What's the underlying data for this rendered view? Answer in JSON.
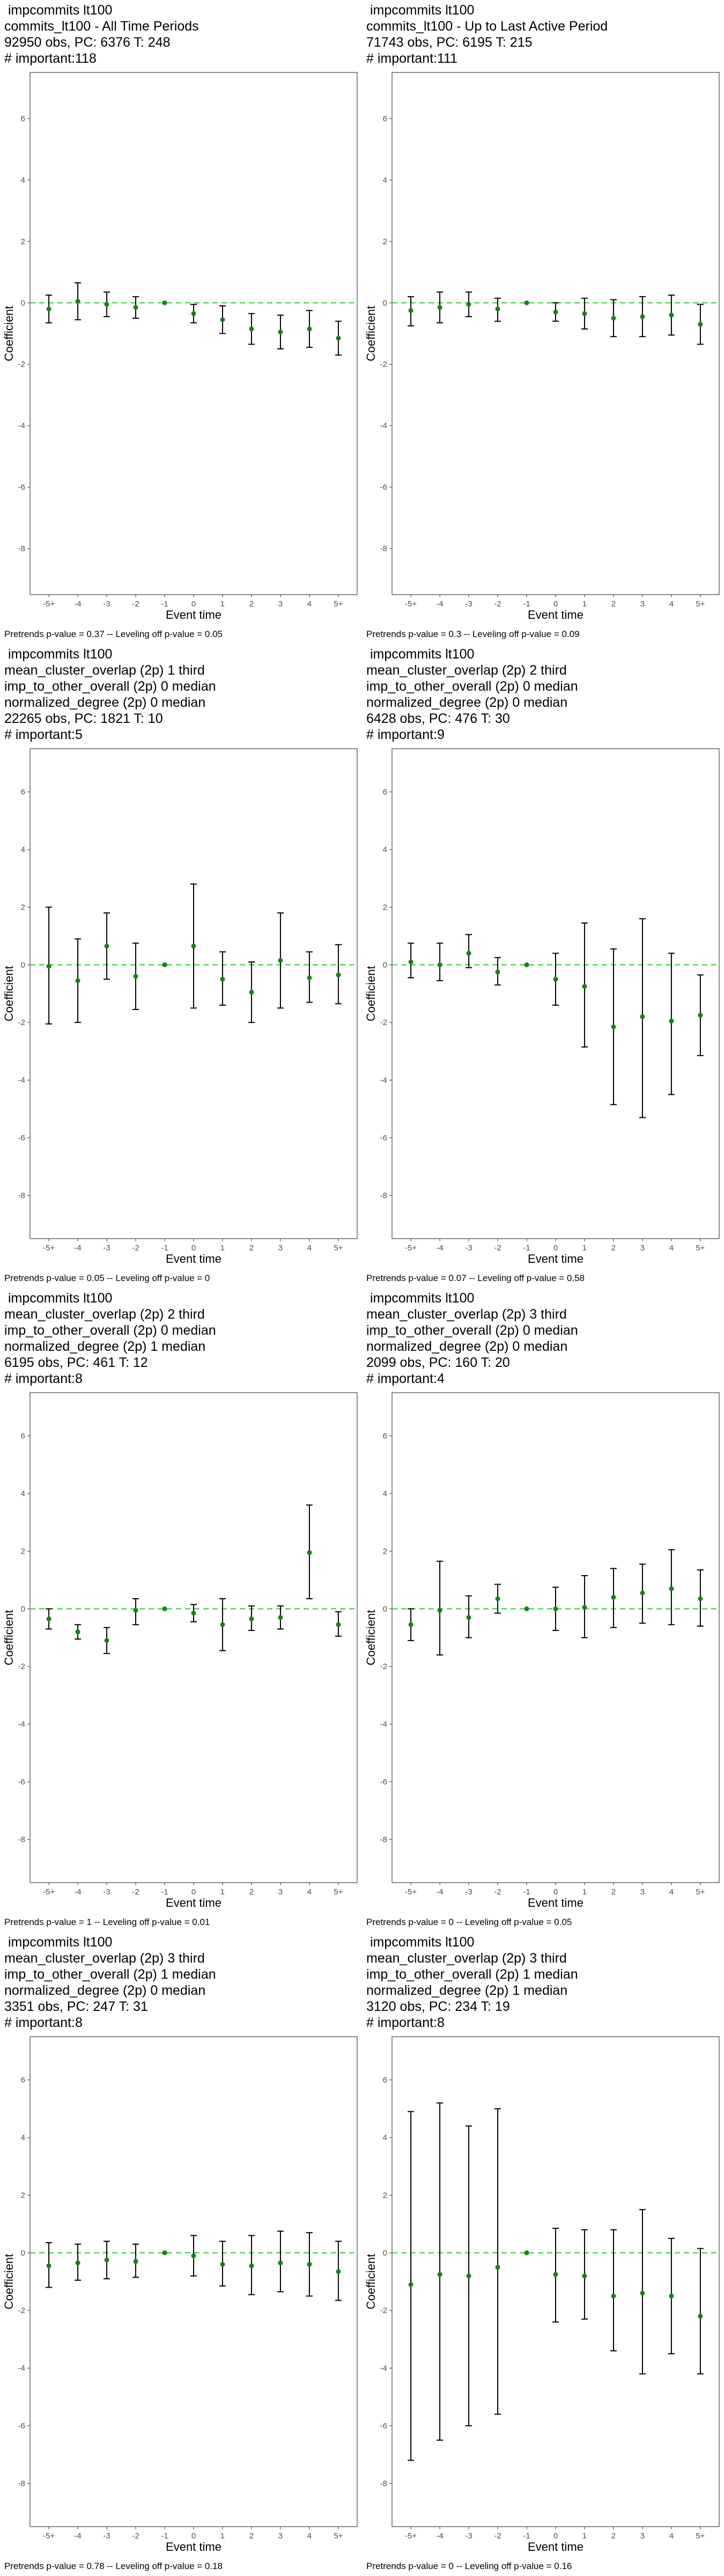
{
  "chart_data": [
    {
      "type": "scatter",
      "title_lines": [
        " impcommits lt100",
        "commits_lt100 - All Time Periods",
        "92950 obs, PC: 6376 T: 248",
        "# important:118"
      ],
      "caption": "Pretrends p-value = 0.37 -- Leveling off p-value = 0.05",
      "xlabel": "Event time",
      "ylabel": "Coefficient",
      "categories": [
        "-5+",
        "-4",
        "-3",
        "-2",
        "-1",
        "0",
        "1",
        "2",
        "3",
        "4",
        "5+"
      ],
      "ylim": [
        -9.5,
        7.5
      ],
      "yticks": [
        -8,
        -6,
        -4,
        -2,
        0,
        2,
        4,
        6
      ],
      "reference_line": 0,
      "estimate": [
        -0.2,
        0.05,
        -0.05,
        -0.15,
        0,
        -0.35,
        -0.55,
        -0.85,
        -0.95,
        -0.85,
        -1.15
      ],
      "ci_lower": [
        -0.65,
        -0.55,
        -0.45,
        -0.5,
        0,
        -0.65,
        -1.0,
        -1.35,
        -1.5,
        -1.45,
        -1.7
      ],
      "ci_upper": [
        0.25,
        0.65,
        0.35,
        0.2,
        0,
        -0.05,
        -0.1,
        -0.35,
        -0.4,
        -0.25,
        -0.6
      ]
    },
    {
      "type": "scatter",
      "title_lines": [
        " impcommits lt100",
        "commits_lt100 - Up to Last Active Period",
        "71743 obs, PC: 6195 T: 215",
        "# important:111"
      ],
      "caption": "Pretrends p-value = 0.3 -- Leveling off p-value = 0.09",
      "xlabel": "Event time",
      "ylabel": "Coefficient",
      "categories": [
        "-5+",
        "-4",
        "-3",
        "-2",
        "-1",
        "0",
        "1",
        "2",
        "3",
        "4",
        "5+"
      ],
      "ylim": [
        -9.5,
        7.5
      ],
      "yticks": [
        -8,
        -6,
        -4,
        -2,
        0,
        2,
        4,
        6
      ],
      "reference_line": 0,
      "estimate": [
        -0.25,
        -0.15,
        -0.05,
        -0.2,
        0,
        -0.3,
        -0.35,
        -0.5,
        -0.45,
        -0.4,
        -0.7
      ],
      "ci_lower": [
        -0.75,
        -0.65,
        -0.45,
        -0.6,
        0,
        -0.6,
        -0.85,
        -1.1,
        -1.1,
        -1.05,
        -1.35
      ],
      "ci_upper": [
        0.2,
        0.35,
        0.35,
        0.15,
        0,
        0.0,
        0.15,
        0.1,
        0.2,
        0.25,
        -0.05
      ]
    },
    {
      "type": "scatter",
      "title_lines": [
        " impcommits lt100",
        "mean_cluster_overlap (2p) 1 third",
        "imp_to_other_overall (2p) 0 median",
        "normalized_degree (2p) 0 median",
        "22265 obs, PC: 1821 T: 10",
        "# important:5"
      ],
      "caption": "Pretrends p-value = 0.05 -- Leveling off p-value = 0",
      "xlabel": "Event time",
      "ylabel": "Coefficient",
      "categories": [
        "-5+",
        "-4",
        "-3",
        "-2",
        "-1",
        "0",
        "1",
        "2",
        "3",
        "4",
        "5+"
      ],
      "ylim": [
        -9.5,
        7.5
      ],
      "yticks": [
        -8,
        -6,
        -4,
        -2,
        0,
        2,
        4,
        6
      ],
      "reference_line": 0,
      "estimate": [
        -0.05,
        -0.55,
        0.65,
        -0.4,
        0,
        0.65,
        -0.5,
        -0.95,
        0.15,
        -0.45,
        -0.35
      ],
      "ci_lower": [
        -2.05,
        -2.0,
        -0.5,
        -1.55,
        0,
        -1.5,
        -1.4,
        -2.0,
        -1.5,
        -1.3,
        -1.35
      ],
      "ci_upper": [
        2.0,
        0.9,
        1.8,
        0.75,
        0,
        2.8,
        0.45,
        0.1,
        1.8,
        0.45,
        0.7
      ]
    },
    {
      "type": "scatter",
      "title_lines": [
        " impcommits lt100",
        "mean_cluster_overlap (2p) 2 third",
        "imp_to_other_overall (2p) 0 median",
        "normalized_degree (2p) 0 median",
        "6428 obs, PC: 476 T: 30",
        "# important:9"
      ],
      "caption": "Pretrends p-value = 0.07 -- Leveling off p-value = 0.58",
      "xlabel": "Event time",
      "ylabel": "Coefficient",
      "categories": [
        "-5+",
        "-4",
        "-3",
        "-2",
        "-1",
        "0",
        "1",
        "2",
        "3",
        "4",
        "5+"
      ],
      "ylim": [
        -9.5,
        7.5
      ],
      "yticks": [
        -8,
        -6,
        -4,
        -2,
        0,
        2,
        4,
        6
      ],
      "reference_line": 0,
      "estimate": [
        0.1,
        0.0,
        0.4,
        -0.25,
        0,
        -0.5,
        -0.75,
        -2.15,
        -1.8,
        -1.95,
        -1.75
      ],
      "ci_lower": [
        -0.45,
        -0.55,
        -0.1,
        -0.7,
        0,
        -1.4,
        -2.85,
        -4.85,
        -5.3,
        -4.5,
        -3.15
      ],
      "ci_upper": [
        0.75,
        0.75,
        1.05,
        0.25,
        0,
        0.4,
        1.45,
        0.55,
        1.6,
        0.4,
        -0.35
      ]
    },
    {
      "type": "scatter",
      "title_lines": [
        " impcommits lt100",
        "mean_cluster_overlap (2p) 2 third",
        "imp_to_other_overall (2p) 0 median",
        "normalized_degree (2p) 1 median",
        "6195 obs, PC: 461 T: 12",
        "# important:8"
      ],
      "caption": "Pretrends p-value = 1 -- Leveling off p-value = 0.01",
      "xlabel": "Event time",
      "ylabel": "Coefficient",
      "categories": [
        "-5+",
        "-4",
        "-3",
        "-2",
        "-1",
        "0",
        "1",
        "2",
        "3",
        "4",
        "5+"
      ],
      "ylim": [
        -9.5,
        7.5
      ],
      "yticks": [
        -8,
        -6,
        -4,
        -2,
        0,
        2,
        4,
        6
      ],
      "reference_line": 0,
      "estimate": [
        -0.35,
        -0.8,
        -1.1,
        -0.05,
        0,
        -0.15,
        -0.55,
        -0.35,
        -0.3,
        1.95,
        -0.55
      ],
      "ci_lower": [
        -0.7,
        -1.05,
        -1.55,
        -0.55,
        0,
        -0.45,
        -1.45,
        -0.75,
        -0.7,
        0.35,
        -0.95
      ],
      "ci_upper": [
        0.0,
        -0.55,
        -0.65,
        0.35,
        0,
        0.15,
        0.35,
        0.1,
        0.1,
        3.6,
        -0.1
      ]
    },
    {
      "type": "scatter",
      "title_lines": [
        " impcommits lt100",
        "mean_cluster_overlap (2p) 3 third",
        "imp_to_other_overall (2p) 0 median",
        "normalized_degree (2p) 0 median",
        "2099 obs, PC: 160 T: 20",
        "# important:4"
      ],
      "caption": "Pretrends p-value = 0 -- Leveling off p-value = 0.05",
      "xlabel": "Event time",
      "ylabel": "Coefficient",
      "categories": [
        "-5+",
        "-4",
        "-3",
        "-2",
        "-1",
        "0",
        "1",
        "2",
        "3",
        "4",
        "5+"
      ],
      "ylim": [
        -9.5,
        7.5
      ],
      "yticks": [
        -8,
        -6,
        -4,
        -2,
        0,
        2,
        4,
        6
      ],
      "reference_line": 0,
      "estimate": [
        -0.55,
        -0.05,
        -0.3,
        0.35,
        0,
        0.0,
        0.05,
        0.4,
        0.55,
        0.7,
        0.35
      ],
      "ci_lower": [
        -1.1,
        -1.6,
        -1.0,
        -0.15,
        0,
        -0.75,
        -1.0,
        -0.65,
        -0.5,
        -0.55,
        -0.6
      ],
      "ci_upper": [
        0.0,
        1.65,
        0.45,
        0.85,
        0,
        0.75,
        1.15,
        1.4,
        1.55,
        2.05,
        1.35
      ]
    },
    {
      "type": "scatter",
      "title_lines": [
        " impcommits lt100",
        "mean_cluster_overlap (2p) 3 third",
        "imp_to_other_overall (2p) 1 median",
        "normalized_degree (2p) 0 median",
        "3351 obs, PC: 247 T: 31",
        "# important:8"
      ],
      "caption": "Pretrends p-value = 0.78 -- Leveling off p-value = 0.18",
      "xlabel": "Event time",
      "ylabel": "Coefficient",
      "categories": [
        "-5+",
        "-4",
        "-3",
        "-2",
        "-1",
        "0",
        "1",
        "2",
        "3",
        "4",
        "5+"
      ],
      "ylim": [
        -9.5,
        7.5
      ],
      "yticks": [
        -8,
        -6,
        -4,
        -2,
        0,
        2,
        4,
        6
      ],
      "reference_line": 0,
      "estimate": [
        -0.45,
        -0.35,
        -0.25,
        -0.3,
        0,
        -0.1,
        -0.4,
        -0.45,
        -0.35,
        -0.4,
        -0.65
      ],
      "ci_lower": [
        -1.2,
        -0.95,
        -0.9,
        -0.85,
        0,
        -0.8,
        -1.15,
        -1.45,
        -1.35,
        -1.5,
        -1.65
      ],
      "ci_upper": [
        0.35,
        0.3,
        0.4,
        0.3,
        0,
        0.6,
        0.4,
        0.6,
        0.75,
        0.7,
        0.4
      ]
    },
    {
      "type": "scatter",
      "title_lines": [
        " impcommits lt100",
        "mean_cluster_overlap (2p) 3 third",
        "imp_to_other_overall (2p) 1 median",
        "normalized_degree (2p) 1 median",
        "3120 obs, PC: 234 T: 19",
        "# important:8"
      ],
      "caption": "Pretrends p-value = 0 -- Leveling off p-value = 0.16",
      "xlabel": "Event time",
      "ylabel": "Coefficient",
      "categories": [
        "-5+",
        "-4",
        "-3",
        "-2",
        "-1",
        "0",
        "1",
        "2",
        "3",
        "4",
        "5+"
      ],
      "ylim": [
        -9.5,
        7.5
      ],
      "yticks": [
        -8,
        -6,
        -4,
        -2,
        0,
        2,
        4,
        6
      ],
      "reference_line": 0,
      "estimate": [
        -1.1,
        -0.75,
        -0.8,
        -0.5,
        0,
        -0.75,
        -0.8,
        -1.5,
        -1.4,
        -1.5,
        -2.2
      ],
      "ci_lower": [
        -7.2,
        -6.5,
        -6.0,
        -5.6,
        0,
        -2.4,
        -2.3,
        -3.4,
        -4.2,
        -3.5,
        -4.2
      ],
      "ci_upper": [
        4.9,
        5.2,
        4.4,
        5.0,
        0,
        0.85,
        0.8,
        0.8,
        1.5,
        0.5,
        0.15
      ]
    }
  ],
  "colors": {
    "reference_line": "#33cc33",
    "point": "#1a7f1a",
    "errorbar": "#000000",
    "panel_border": "#444444",
    "tick_text": "#4d4d4d"
  }
}
